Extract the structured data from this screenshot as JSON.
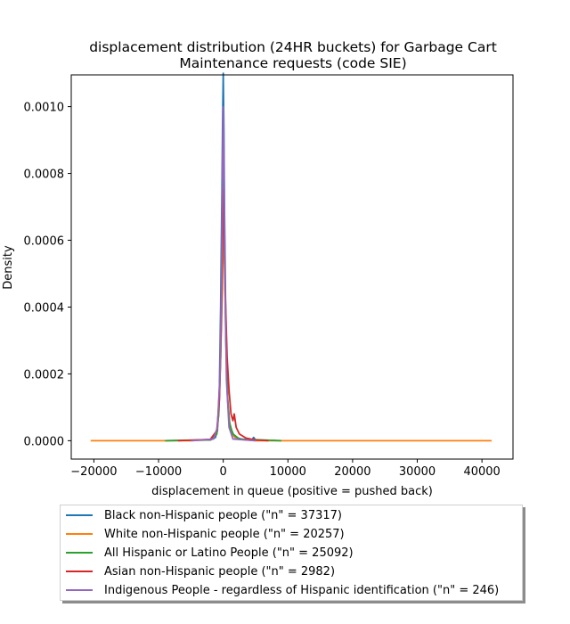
{
  "chart_data": {
    "type": "line",
    "title": "displacement distribution (24HR buckets) for Garbage Cart Maintenance requests (code SIE)",
    "title_lines": [
      "displacement distribution (24HR buckets) for Garbage Cart",
      "Maintenance requests (code SIE)"
    ],
    "xlabel": "displacement in queue (positive = pushed back)",
    "ylabel": "Density",
    "xlim": [
      -23500,
      44800
    ],
    "ylim": [
      -5.5e-05,
      0.001095
    ],
    "xticks": [
      -20000,
      -10000,
      0,
      10000,
      20000,
      30000,
      40000
    ],
    "xtick_labels": [
      "−20000",
      "−10000",
      "0",
      "10000",
      "20000",
      "30000",
      "40000"
    ],
    "yticks": [
      0.0,
      0.0002,
      0.0004,
      0.0006,
      0.0008,
      0.001
    ],
    "ytick_labels": [
      "0.0000",
      "0.0002",
      "0.0004",
      "0.0006",
      "0.0008",
      "0.0010"
    ],
    "legend_position": "below",
    "series": [
      {
        "name": "Black non-Hispanic people (\"n\" = 37317)",
        "color": "#1f77b4",
        "x": [
          -9000,
          -2000,
          -1200,
          -900,
          -600,
          -400,
          -200,
          -100,
          0,
          100,
          200,
          400,
          600,
          900,
          1300,
          1800,
          3000,
          4500,
          4700,
          5000,
          9000
        ],
        "y": [
          0,
          2e-06,
          1e-05,
          3e-05,
          0.00015,
          0.0004,
          0.00075,
          0.00095,
          0.0011,
          0.00093,
          0.00068,
          0.00035,
          0.00015,
          6e-05,
          3e-05,
          1e-05,
          4e-06,
          4e-06,
          1e-05,
          2e-06,
          0
        ]
      },
      {
        "name": "White non-Hispanic people (\"n\" = 20257)",
        "color": "#ff7f0e",
        "x": [
          -20500,
          -5000,
          -2000,
          -1000,
          -700,
          -500,
          -300,
          -150,
          0,
          150,
          300,
          500,
          700,
          1000,
          1500,
          2500,
          5000,
          41500
        ],
        "y": [
          0,
          0,
          3e-06,
          2e-05,
          8e-05,
          0.00018,
          0.00033,
          0.00045,
          0.00062,
          0.00056,
          0.00042,
          0.00025,
          0.00012,
          5e-05,
          1.5e-05,
          4e-06,
          0,
          0
        ]
      },
      {
        "name": "All Hispanic or Latino People (\"n\" = 25092)",
        "color": "#2ca02c",
        "x": [
          -9000,
          -2000,
          -1000,
          -700,
          -400,
          -200,
          -100,
          0,
          100,
          200,
          400,
          700,
          1000,
          1500,
          2500,
          9000
        ],
        "y": [
          0,
          3e-06,
          2e-05,
          8e-05,
          0.00025,
          0.00055,
          0.0007,
          0.00085,
          0.00074,
          0.00058,
          0.0003,
          0.00012,
          5e-05,
          2e-05,
          5e-06,
          0
        ]
      },
      {
        "name": "Asian non-Hispanic people (\"n\" = 2982)",
        "color": "#d62728",
        "x": [
          -7000,
          -2000,
          -1000,
          -600,
          -300,
          -150,
          0,
          150,
          300,
          600,
          900,
          1200,
          1500,
          1700,
          2000,
          2500,
          3500,
          5000,
          7000
        ],
        "y": [
          0,
          4e-06,
          3e-05,
          0.00012,
          0.00035,
          0.00055,
          0.00075,
          0.00062,
          0.00045,
          0.00025,
          0.00015,
          8e-05,
          6e-05,
          8e-05,
          4e-05,
          2e-05,
          8e-06,
          2e-06,
          0
        ]
      },
      {
        "name": "Indigenous People - regardless of Hispanic identification (\"n\" = 246)",
        "color": "#9467bd",
        "x": [
          -5000,
          -1500,
          -900,
          -500,
          -250,
          -100,
          0,
          100,
          250,
          500,
          900,
          1500,
          5000
        ],
        "y": [
          0,
          5e-06,
          4e-05,
          0.0002,
          0.0005,
          0.00085,
          0.001,
          0.00085,
          0.0005,
          0.00018,
          4e-05,
          5e-06,
          0
        ]
      }
    ]
  }
}
